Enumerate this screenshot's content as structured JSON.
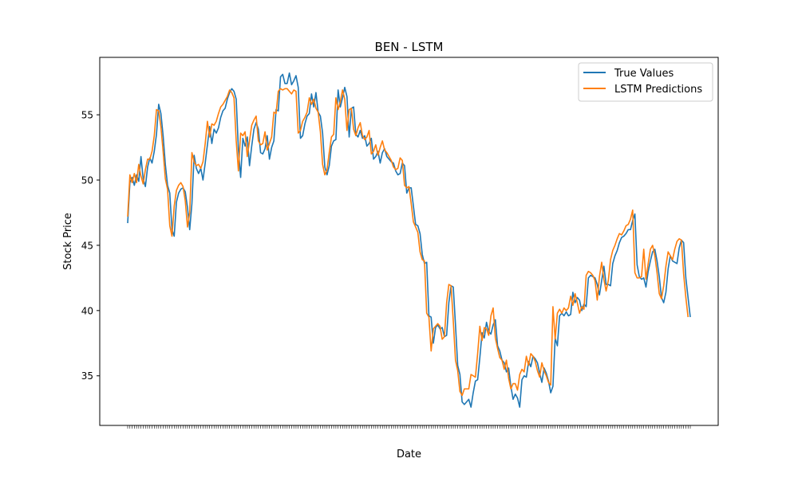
{
  "chart_data": {
    "type": "line",
    "title": "BEN - LSTM",
    "xlabel": "Date",
    "ylabel": "Stock Price",
    "ylim": [
      31.2,
      59.4
    ],
    "yticks": [
      35,
      40,
      45,
      50,
      55
    ],
    "grid": false,
    "legend_position": "top-right",
    "series": [
      {
        "name": "True Values",
        "color": "#1f77b4",
        "values": [
          46.7,
          49.8,
          50.2,
          49.6,
          50.4,
          49.9,
          51.8,
          50.1,
          49.5,
          51.0,
          51.7,
          51.3,
          52.2,
          53.5,
          55.8,
          55.1,
          53.4,
          51.2,
          49.6,
          49.0,
          46.2,
          45.7,
          48.3,
          49.0,
          49.3,
          49.4,
          49.1,
          47.9,
          46.2,
          48.2,
          51.9,
          50.9,
          50.5,
          50.9,
          50.0,
          51.3,
          52.7,
          54.1,
          52.8,
          53.9,
          53.6,
          54.0,
          54.8,
          55.3,
          55.5,
          56.2,
          56.7,
          57.0,
          56.8,
          56.2,
          52.3,
          50.2,
          53.2,
          52.6,
          53.3,
          51.1,
          52.6,
          53.9,
          54.4,
          53.9,
          52.1,
          52.0,
          52.4,
          53.4,
          51.6,
          52.5,
          53.0,
          55.4,
          55.3,
          57.9,
          58.1,
          57.4,
          57.4,
          58.2,
          57.3,
          57.6,
          58.0,
          57.1,
          53.2,
          53.4,
          54.3,
          54.9,
          55.1,
          56.6,
          55.6,
          56.7,
          55.2,
          54.9,
          53.6,
          51.0,
          50.4,
          51.1,
          52.6,
          53.0,
          53.1,
          56.9,
          55.6,
          56.3,
          57.1,
          56.4,
          53.3,
          55.5,
          55.6,
          53.5,
          53.3,
          53.8,
          53.2,
          53.4,
          52.6,
          52.8,
          53.2,
          51.6,
          51.8,
          52.2,
          51.3,
          52.1,
          52.4,
          51.8,
          51.6,
          51.4,
          51.3,
          50.7,
          50.4,
          50.5,
          51.3,
          51.1,
          49.0,
          49.4,
          49.4,
          48.0,
          46.6,
          46.5,
          45.9,
          44.3,
          43.6,
          43.7,
          39.6,
          39.5,
          37.5,
          38.7,
          38.9,
          38.6,
          38.7,
          38.0,
          38.1,
          40.6,
          41.9,
          41.8,
          38.9,
          35.8,
          35.1,
          33.0,
          32.8,
          33.0,
          33.2,
          32.6,
          33.7,
          34.6,
          34.7,
          36.4,
          38.3,
          37.9,
          39.1,
          38.4,
          38.2,
          38.9,
          39.3,
          37.3,
          36.9,
          36.2,
          36.0,
          35.3,
          35.6,
          34.2,
          33.2,
          33.6,
          33.3,
          32.6,
          34.7,
          35.0,
          34.9,
          36.1,
          35.7,
          36.5,
          36.3,
          36.0,
          35.2,
          34.5,
          35.6,
          35.2,
          34.6,
          33.7,
          34.2,
          37.9,
          37.3,
          39.6,
          39.8,
          39.6,
          39.9,
          39.6,
          39.7,
          41.4,
          40.6,
          41.0,
          40.8,
          40.0,
          40.5,
          40.3,
          42.5,
          42.7,
          42.6,
          42.5,
          42.0,
          41.2,
          42.3,
          43.4,
          42.0,
          42.0,
          41.9,
          43.6,
          44.2,
          44.6,
          45.2,
          45.6,
          45.7,
          45.9,
          46.2,
          46.2,
          46.9,
          47.4,
          43.5,
          42.6,
          42.4,
          42.5,
          41.8,
          43.0,
          43.8,
          44.5,
          44.7,
          43.8,
          42.6,
          41.0,
          40.6,
          41.4,
          43.2,
          44.2,
          43.8,
          43.7,
          43.6,
          44.8,
          45.4,
          45.2,
          42.5,
          41.0,
          39.5
        ]
      },
      {
        "name": "LSTM Predictions",
        "color": "#ff7f0e",
        "values": [
          47.2,
          50.4,
          49.8,
          50.5,
          49.8,
          51.2,
          50.3,
          49.7,
          50.8,
          51.6,
          51.6,
          52.2,
          53.4,
          55.4,
          55.3,
          54.1,
          52.2,
          50.1,
          49.3,
          46.5,
          45.7,
          48.0,
          49.2,
          49.6,
          49.8,
          49.5,
          48.4,
          46.4,
          47.5,
          52.1,
          51.4,
          51.1,
          51.2,
          50.9,
          51.4,
          52.8,
          54.5,
          53.3,
          54.3,
          54.2,
          54.5,
          55.1,
          55.6,
          55.8,
          56.1,
          56.4,
          56.9,
          56.7,
          56.3,
          53.0,
          50.7,
          53.6,
          53.4,
          53.7,
          51.8,
          53.0,
          54.2,
          54.6,
          54.9,
          53.0,
          52.7,
          52.8,
          53.7,
          52.3,
          52.8,
          53.3,
          55.2,
          55.1,
          56.8,
          57.0,
          56.9,
          57.0,
          57.0,
          56.8,
          56.6,
          56.9,
          56.8,
          53.6,
          53.8,
          54.5,
          54.8,
          55.2,
          56.3,
          55.8,
          56.2,
          55.5,
          55.2,
          53.7,
          51.2,
          50.4,
          50.8,
          52.1,
          53.3,
          53.5,
          56.3,
          55.4,
          56.0,
          56.9,
          56.2,
          53.8,
          55.4,
          55.5,
          53.9,
          53.4,
          54.0,
          54.4,
          53.4,
          53.1,
          53.3,
          53.8,
          52.0,
          52.2,
          52.7,
          51.9,
          52.5,
          53.0,
          52.3,
          52.1,
          51.8,
          51.5,
          51.0,
          50.8,
          50.9,
          51.7,
          51.5,
          49.6,
          49.4,
          49.5,
          48.2,
          46.8,
          46.4,
          46.0,
          44.5,
          43.9,
          43.8,
          39.8,
          39.5,
          36.9,
          38.6,
          38.8,
          39.0,
          38.8,
          37.8,
          38.0,
          40.6,
          42.0,
          41.9,
          39.2,
          36.2,
          35.4,
          33.8,
          33.5,
          34.0,
          34.0,
          34.0,
          35.1,
          35.0,
          34.9,
          36.7,
          38.8,
          37.7,
          38.7,
          38.6,
          38.1,
          39.6,
          40.2,
          37.9,
          37.1,
          36.4,
          36.2,
          35.5,
          36.2,
          34.8,
          34.0,
          34.4,
          34.4,
          33.9,
          35.1,
          35.5,
          35.3,
          36.5,
          35.8,
          36.7,
          36.5,
          36.1,
          35.4,
          34.9,
          36.0,
          35.4,
          35.0,
          34.5,
          34.3,
          40.3,
          37.8,
          39.8,
          40.1,
          39.8,
          40.2,
          40.0,
          40.2,
          41.1,
          40.4,
          41.3,
          40.6,
          39.8,
          40.3,
          40.1,
          42.7,
          43.0,
          42.9,
          42.7,
          42.3,
          40.8,
          42.6,
          43.7,
          42.4,
          41.5,
          42.3,
          43.9,
          44.6,
          45.0,
          45.5,
          45.9,
          45.8,
          46.1,
          46.5,
          46.6,
          47.0,
          47.7,
          42.9,
          42.5,
          42.5,
          42.6,
          44.7,
          42.4,
          43.6,
          44.7,
          45.0,
          44.2,
          42.9,
          41.3,
          40.9,
          41.9,
          43.4,
          44.5,
          44.2,
          43.9,
          44.7,
          45.3,
          45.5,
          45.4,
          42.8,
          41.0,
          39.5
        ]
      }
    ]
  }
}
